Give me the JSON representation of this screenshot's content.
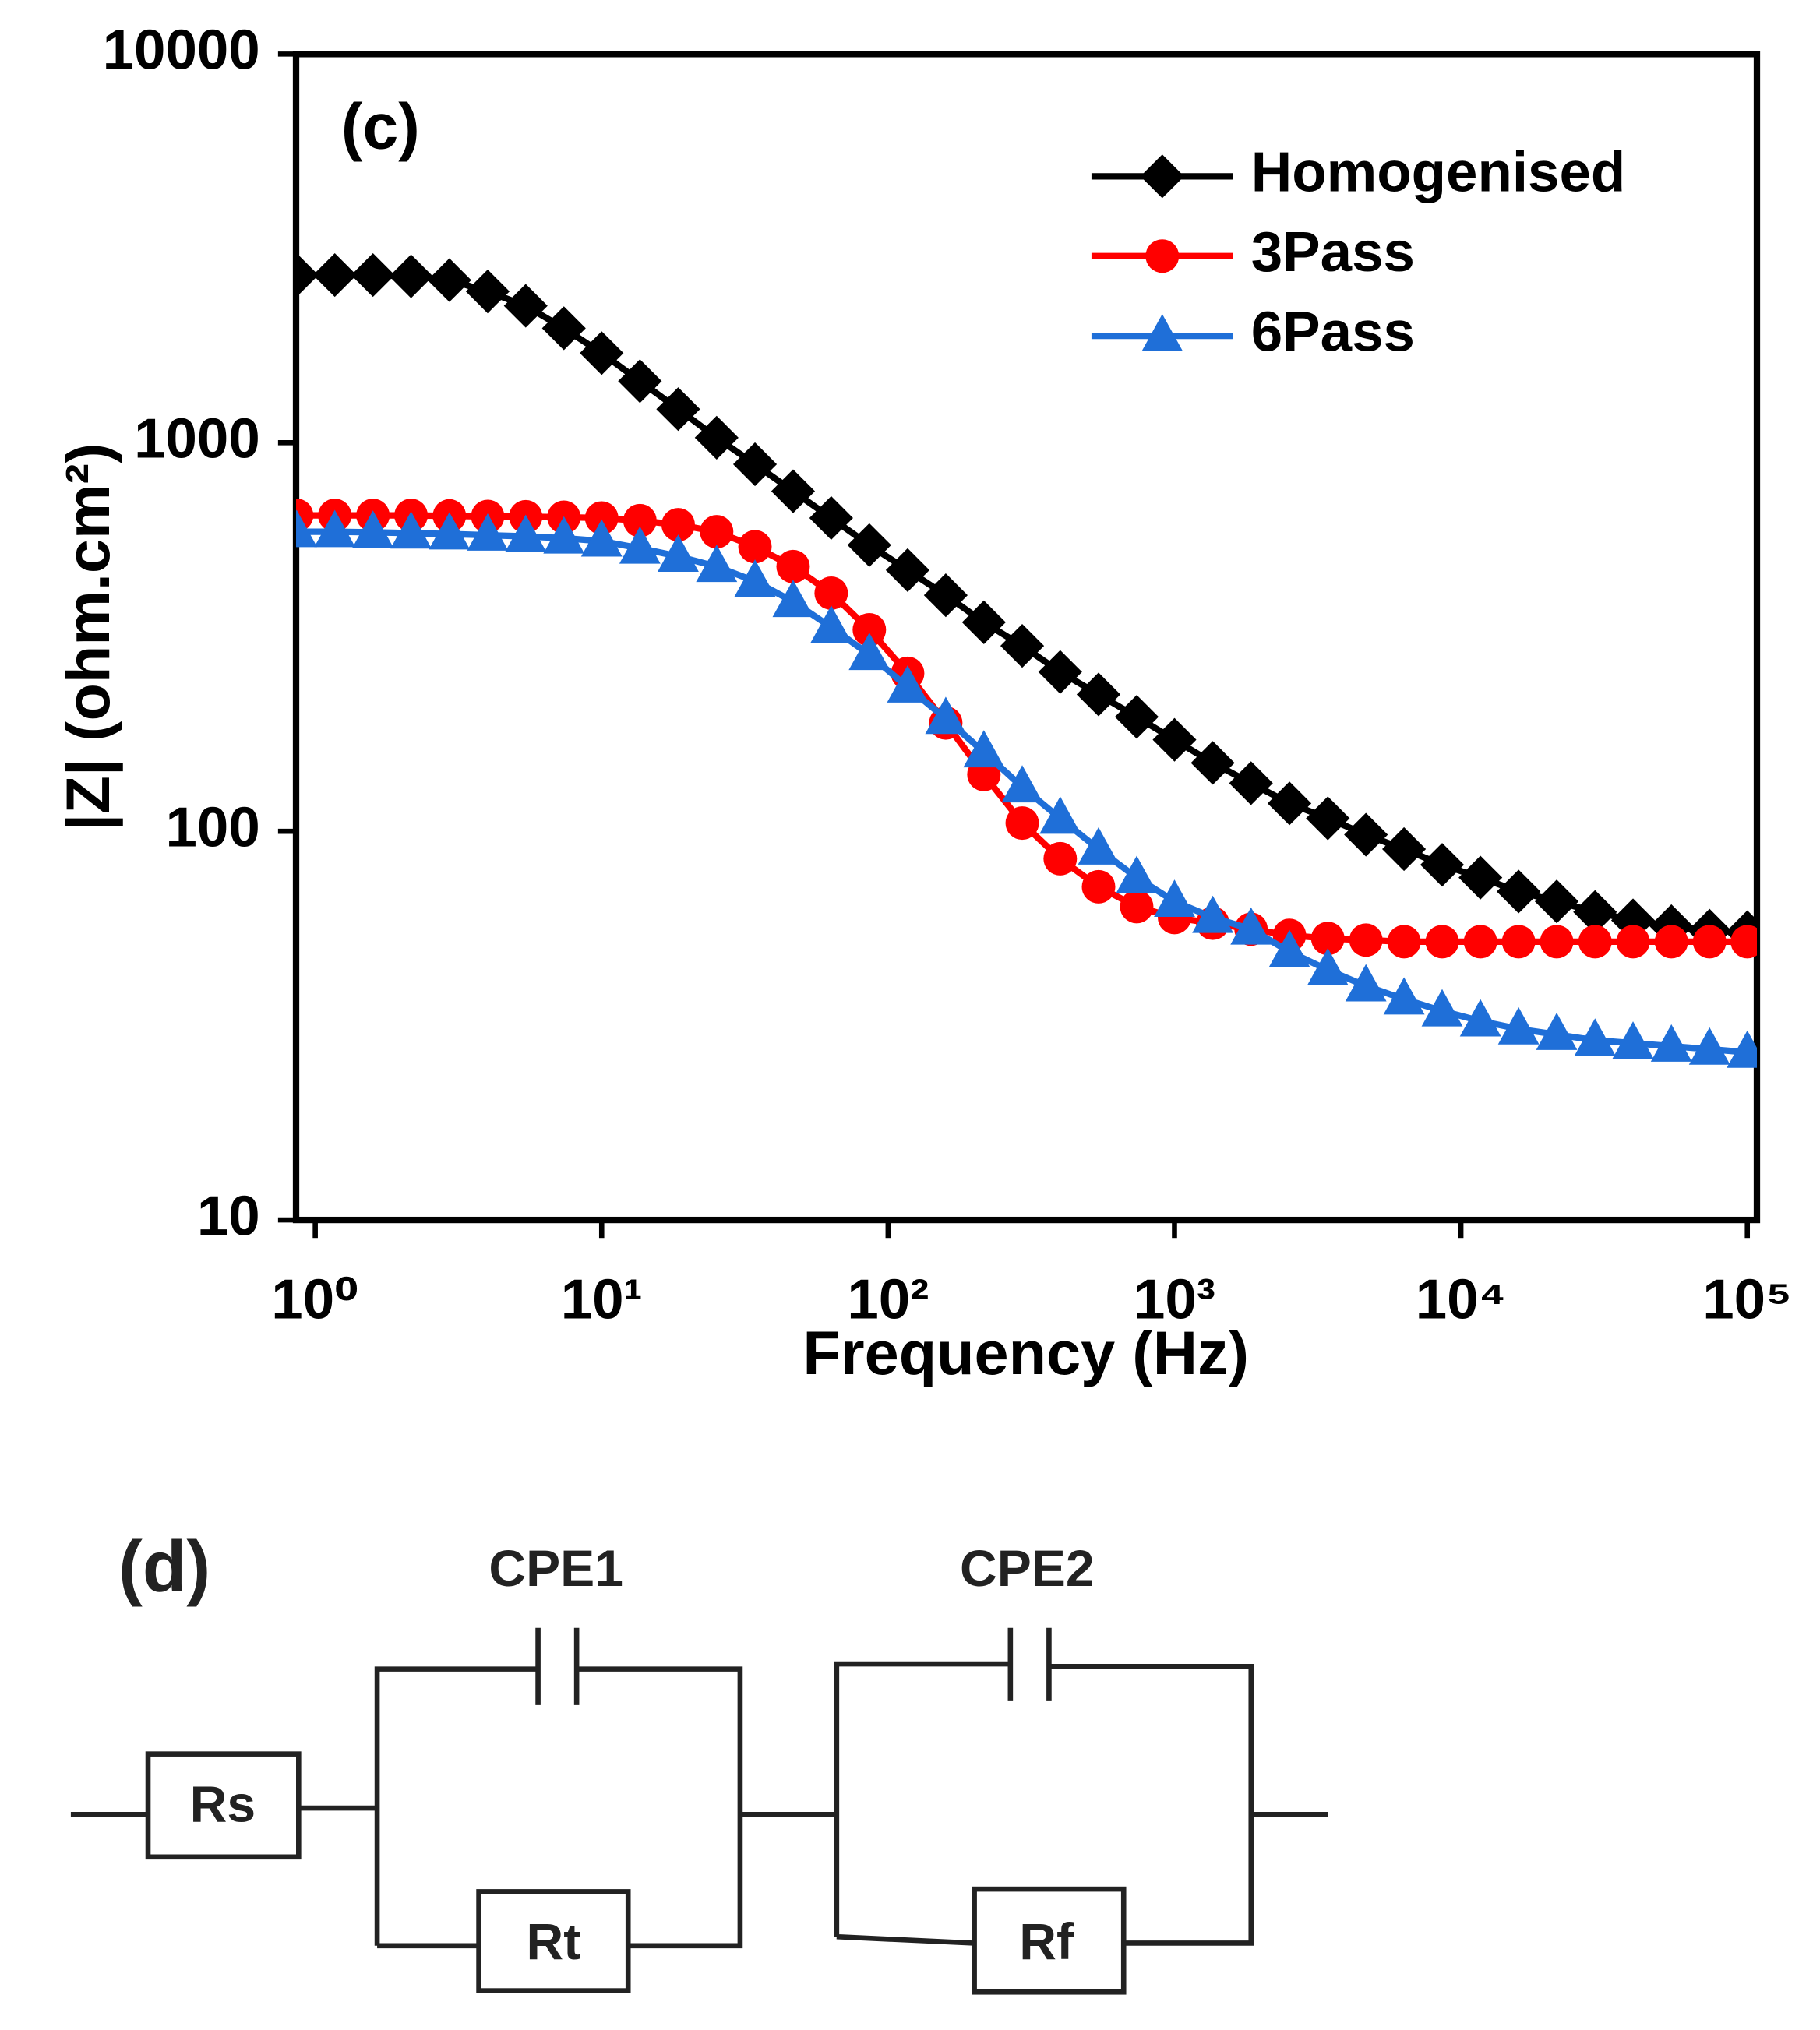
{
  "chart_data": {
    "type": "line",
    "annotation": "(c)",
    "x_label": "Frequency (Hz)",
    "y_label": "|Z| (ohm.cm²)",
    "x": [
      0.861,
      1.17,
      1.59,
      2.16,
      2.94,
      4.0,
      5.43,
      7.38,
      10.0,
      13.6,
      18.5,
      25.2,
      34.3,
      46.6,
      63.3,
      86.0,
      117,
      159,
      216,
      294,
      399,
      543,
      738,
      1000,
      1360,
      1850,
      2520,
      3430,
      4660,
      6330,
      8600,
      11700,
      15900,
      21600,
      29400,
      39900,
      54300,
      73800,
      100000
    ],
    "series": [
      {
        "name": "Homogenised",
        "color": "#000000",
        "marker": "diamond",
        "values": [
          2700,
          2700,
          2700,
          2680,
          2620,
          2450,
          2250,
          1970,
          1700,
          1440,
          1220,
          1030,
          880,
          750,
          640,
          545,
          470,
          405,
          345,
          300,
          257,
          225,
          197,
          172,
          150,
          133,
          118,
          108,
          98,
          90,
          82,
          76,
          70,
          66,
          62,
          59,
          57,
          55.5,
          55
        ]
      },
      {
        "name": "3Pass",
        "color": "#ff0000",
        "marker": "circle",
        "values": [
          650,
          650,
          650,
          650,
          648,
          646,
          645,
          643,
          640,
          630,
          615,
          590,
          540,
          480,
          410,
          330,
          255,
          190,
          140,
          105,
          85,
          72,
          64,
          60,
          58,
          56,
          54,
          53,
          52.5,
          52,
          52,
          52,
          52,
          52,
          52,
          52,
          52,
          52,
          52
        ]
      },
      {
        "name": "6Pass",
        "color": "#1f6fd8",
        "marker": "triangle",
        "values": [
          590,
          590,
          588,
          585,
          582,
          578,
          574,
          568,
          558,
          535,
          510,
          480,
          440,
          390,
          335,
          285,
          235,
          195,
          160,
          130,
          108,
          90,
          76,
          66,
          60,
          56,
          49,
          44,
          40,
          37,
          34.5,
          32.5,
          31,
          30,
          29,
          28.5,
          28,
          27.5,
          27
        ]
      }
    ],
    "xlim": [
      0.857,
      108000
    ],
    "ylim": [
      10,
      10000
    ],
    "log_x": true,
    "log_y": true,
    "xticks": [
      {
        "value": 1,
        "label": "10⁰"
      },
      {
        "value": 10,
        "label": "10¹"
      },
      {
        "value": 100,
        "label": "10²"
      },
      {
        "value": 1000,
        "label": "10³"
      },
      {
        "value": 10000,
        "label": "10⁴"
      },
      {
        "value": 100000,
        "label": "10⁵"
      }
    ],
    "yticks": [
      10,
      100,
      1000,
      10000
    ],
    "grid": false,
    "legend": "upper right"
  },
  "diagram": {
    "panel_label": "(d)",
    "rs": "Rs",
    "cpe1": "CPE1",
    "rt": "Rt",
    "cpe2": "CPE2",
    "rf": "Rf"
  }
}
